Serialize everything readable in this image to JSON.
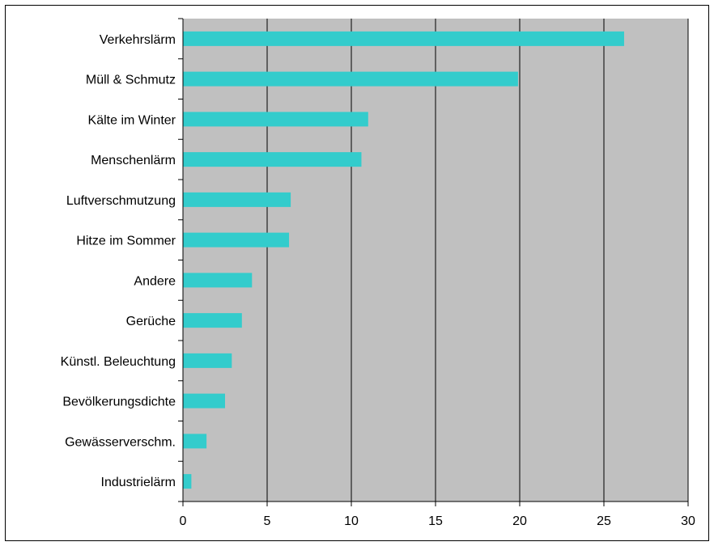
{
  "chart_data": {
    "type": "bar",
    "orientation": "horizontal",
    "categories": [
      "Verkehrslärm",
      "Müll & Schmutz",
      "Kälte im Winter",
      "Menschenlärm",
      "Luftverschmutzung",
      "Hitze im Sommer",
      "Andere",
      "Gerüche",
      "Künstl. Beleuchtung",
      "Bevölkerungsdichte",
      "Gewässerverschm.",
      "Industrielärm"
    ],
    "values": [
      26.2,
      19.9,
      11.0,
      10.6,
      6.4,
      6.3,
      4.1,
      3.5,
      2.9,
      2.5,
      1.4,
      0.5
    ],
    "xlim": [
      0,
      30
    ],
    "xticks": [
      "0",
      "5",
      "10",
      "15",
      "20",
      "25",
      "30"
    ],
    "title": "",
    "xlabel": "",
    "ylabel": "",
    "grid": "vertical",
    "legend": "none",
    "colors": {
      "bar": "#33CCCC",
      "plot_background": "#C0C0C0",
      "gridline": "#000000"
    }
  }
}
